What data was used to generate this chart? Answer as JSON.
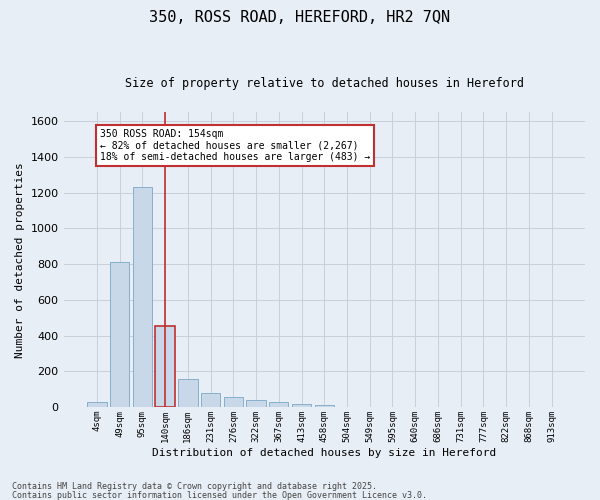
{
  "title1": "350, ROSS ROAD, HEREFORD, HR2 7QN",
  "title2": "Size of property relative to detached houses in Hereford",
  "xlabel": "Distribution of detached houses by size in Hereford",
  "ylabel": "Number of detached properties",
  "categories": [
    "4sqm",
    "49sqm",
    "95sqm",
    "140sqm",
    "186sqm",
    "231sqm",
    "276sqm",
    "322sqm",
    "367sqm",
    "413sqm",
    "458sqm",
    "504sqm",
    "549sqm",
    "595sqm",
    "640sqm",
    "686sqm",
    "731sqm",
    "777sqm",
    "822sqm",
    "868sqm",
    "913sqm"
  ],
  "values": [
    30,
    810,
    1230,
    455,
    155,
    80,
    55,
    40,
    28,
    15,
    8,
    2,
    1,
    1,
    0,
    0,
    0,
    0,
    0,
    0,
    0
  ],
  "bar_color": "#c8d8e8",
  "bar_edge_color": "#7aa8c8",
  "highlight_edge_color": "#c03030",
  "vline_x": 3,
  "vline_color": "#c03030",
  "annotation_text": "350 ROSS ROAD: 154sqm\n← 82% of detached houses are smaller (2,267)\n18% of semi-detached houses are larger (483) →",
  "annotation_box_color": "white",
  "annotation_box_edge": "#c03030",
  "ylim": [
    0,
    1650
  ],
  "yticks": [
    0,
    200,
    400,
    600,
    800,
    1000,
    1200,
    1400,
    1600
  ],
  "grid_color": "#c8d0dc",
  "background_color": "#e8eef5",
  "footer1": "Contains HM Land Registry data © Crown copyright and database right 2025.",
  "footer2": "Contains public sector information licensed under the Open Government Licence v3.0."
}
